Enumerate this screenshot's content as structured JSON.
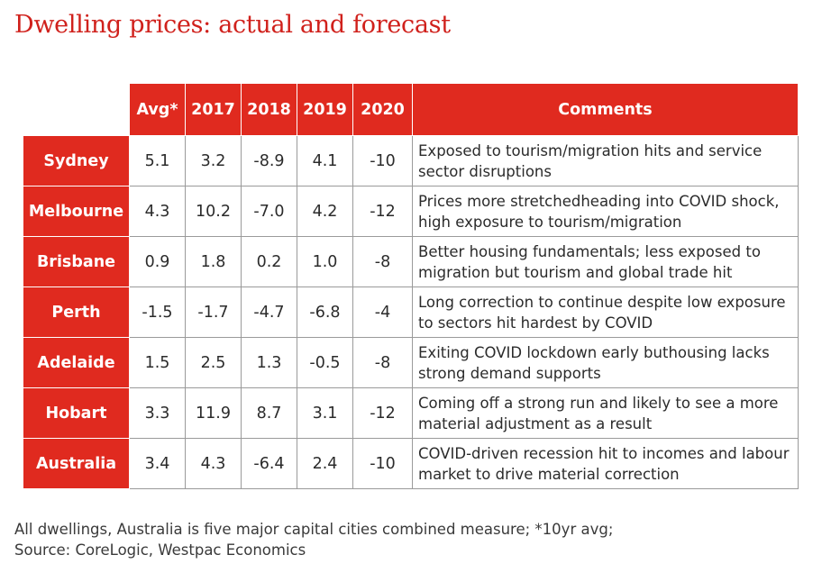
{
  "title": "Dwelling prices: actual and forecast",
  "table": {
    "headers": [
      "",
      "Avg*",
      "2017",
      "2018",
      "2019",
      "2020",
      "Comments"
    ],
    "rows": [
      {
        "city": "Sydney",
        "values": [
          "5.1",
          "3.2",
          "-8.9",
          "4.1",
          "-10"
        ],
        "comment": "Exposed to tourism/migration hits and service sector disruptions"
      },
      {
        "city": "Melbourne",
        "values": [
          "4.3",
          "10.2",
          "-7.0",
          "4.2",
          "-12"
        ],
        "comment": "Prices more stretchedheading into COVID shock, high exposure to tourism/migration"
      },
      {
        "city": "Brisbane",
        "values": [
          "0.9",
          "1.8",
          "0.2",
          "1.0",
          "-8"
        ],
        "comment": "Better housing fundamentals; less exposed to migration but tourism and global trade hit"
      },
      {
        "city": "Perth",
        "values": [
          "-1.5",
          "-1.7",
          "-4.7",
          "-6.8",
          "-4"
        ],
        "comment": "Long correction to continue despite low exposure to sectors hit hardest by COVID"
      },
      {
        "city": "Adelaide",
        "values": [
          "1.5",
          "2.5",
          "1.3",
          "-0.5",
          "-8"
        ],
        "comment": "Exiting COVID lockdown early buthousing lacks strong demand supports"
      },
      {
        "city": "Hobart",
        "values": [
          "3.3",
          "11.9",
          "8.7",
          "3.1",
          "-12"
        ],
        "comment": "Coming off a strong run and likely to see a more material adjustment as a result"
      },
      {
        "city": "Australia",
        "values": [
          "3.4",
          "4.3",
          "-6.4",
          "2.4",
          "-10"
        ],
        "comment": "COVID-driven recession hit to incomes and labour market to drive material correction"
      }
    ]
  },
  "footnote": {
    "line1": "All dwellings, Australia is five major capital cities combined measure; *10yr avg;",
    "line2": "Source: CoreLogic, Westpac Economics"
  },
  "colors": {
    "accent": "#e02a1f",
    "title": "#d0211c",
    "text": "#2b2b2b",
    "grid": "#9a9a9a"
  }
}
